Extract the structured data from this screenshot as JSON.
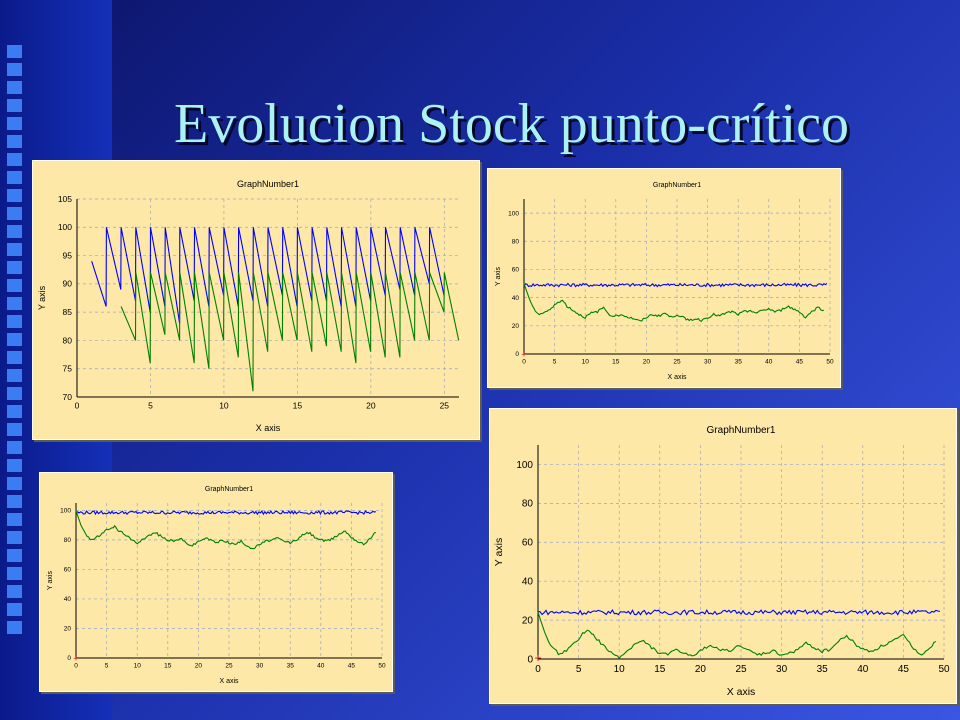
{
  "slide": {
    "title": "Evolucion Stock punto-crítico",
    "colors": {
      "background": "#1a2ea8",
      "title": "#aaf2f4",
      "plot_bg": "#fde8a8",
      "series_blue": "#0000ff",
      "series_green": "#008000"
    }
  },
  "chart_data": [
    {
      "type": "line",
      "title": "GraphNumber1",
      "xlabel": "X axis",
      "ylabel": "Y axis",
      "xlim": [
        0,
        26
      ],
      "ylim": [
        70,
        105
      ],
      "xticks": [
        "0",
        "5",
        "10",
        "15",
        "20",
        "25"
      ],
      "yticks": [
        "70",
        "75",
        "80",
        "85",
        "90",
        "95",
        "100",
        "105"
      ],
      "grid": true,
      "series": [
        {
          "color": "#0000ff",
          "sawtooth": {
            "start": 1,
            "period": 1,
            "top": 100,
            "lows": [
              86,
              89,
              87,
              85,
              86,
              83,
              87,
              86,
              88,
              86,
              87,
              86,
              88,
              86,
              87,
              87,
              86,
              86,
              87,
              88,
              89,
              88,
              90,
              88
            ],
            "first_from": 94
          }
        },
        {
          "color": "#008000",
          "sawtooth": {
            "start": 3,
            "period": 1,
            "top": 92,
            "lows": [
              80,
              76,
              81,
              80,
              76,
              75,
              80,
              77,
              71,
              78,
              80,
              80,
              78,
              79,
              78,
              76,
              78,
              77,
              77,
              80,
              80,
              85,
              80
            ],
            "first_from": 86
          }
        }
      ]
    },
    {
      "type": "line",
      "title": "GraphNumber1",
      "xlabel": "X axis",
      "ylabel": "Y axis",
      "xlim": [
        0,
        50
      ],
      "ylim": [
        0,
        110
      ],
      "xticks": [
        "0",
        "5",
        "10",
        "15",
        "20",
        "25",
        "30",
        "35",
        "40",
        "45",
        "50"
      ],
      "yticks": [
        "0",
        "20",
        "40",
        "60",
        "80",
        "100"
      ],
      "grid": true,
      "series": [
        {
          "color": "#0000ff",
          "level": 49,
          "x_end": 49.5,
          "noise": 1.2
        },
        {
          "color": "#008000",
          "start": 50,
          "points": [
            [
              0,
              50
            ],
            [
              0.8,
              40
            ],
            [
              1.6,
              32
            ],
            [
              2.5,
              28
            ],
            [
              3.5,
              30
            ],
            [
              4.5,
              32
            ],
            [
              5.5,
              37
            ],
            [
              6.3,
              38
            ],
            [
              7,
              34
            ],
            [
              8,
              31
            ],
            [
              9,
              28
            ],
            [
              10,
              26
            ],
            [
              11,
              29
            ],
            [
              12,
              30
            ],
            [
              13,
              33
            ],
            [
              14,
              28
            ],
            [
              15,
              27
            ],
            [
              16,
              28
            ],
            [
              17,
              26
            ],
            [
              18,
              25
            ],
            [
              19,
              23
            ],
            [
              20,
              26
            ],
            [
              21,
              28
            ],
            [
              22,
              27
            ],
            [
              23,
              29
            ],
            [
              24,
              26
            ],
            [
              25,
              28
            ],
            [
              26,
              26
            ],
            [
              27,
              24
            ],
            [
              28,
              25
            ],
            [
              29,
              24
            ],
            [
              30,
              26
            ],
            [
              31,
              28
            ],
            [
              32,
              27
            ],
            [
              33,
              29
            ],
            [
              34,
              30
            ],
            [
              35,
              28
            ],
            [
              36,
              30
            ],
            [
              37,
              31
            ],
            [
              38,
              29
            ],
            [
              39,
              31
            ],
            [
              40,
              32
            ],
            [
              41,
              30
            ],
            [
              42,
              31
            ],
            [
              43,
              34
            ],
            [
              44,
              32
            ],
            [
              45,
              30
            ],
            [
              46,
              26
            ],
            [
              47,
              30
            ],
            [
              48,
              33
            ],
            [
              49,
              31
            ]
          ]
        }
      ]
    },
    {
      "type": "line",
      "title": "GraphNumber1",
      "xlabel": "X axis",
      "ylabel": "Y axis",
      "xlim": [
        0,
        50
      ],
      "ylim": [
        0,
        105
      ],
      "xticks": [
        "0",
        "5",
        "10",
        "15",
        "20",
        "25",
        "30",
        "35",
        "40",
        "45",
        "50"
      ],
      "yticks": [
        "0",
        "20",
        "40",
        "60",
        "80",
        "100"
      ],
      "grid": true,
      "series": [
        {
          "color": "#0000ff",
          "level": 98.5,
          "x_end": 49,
          "noise": 1.1
        },
        {
          "color": "#008000",
          "points": [
            [
              0,
              100
            ],
            [
              0.8,
              90
            ],
            [
              1.6,
              84
            ],
            [
              2.5,
              80
            ],
            [
              3.5,
              82
            ],
            [
              4.5,
              85
            ],
            [
              5.5,
              88
            ],
            [
              6.3,
              89
            ],
            [
              7,
              86
            ],
            [
              8,
              84
            ],
            [
              9,
              80
            ],
            [
              10,
              78
            ],
            [
              11,
              81
            ],
            [
              12,
              83
            ],
            [
              13,
              85
            ],
            [
              14,
              82
            ],
            [
              15,
              80
            ],
            [
              16,
              79
            ],
            [
              17,
              81
            ],
            [
              18,
              78
            ],
            [
              19,
              76
            ],
            [
              20,
              79
            ],
            [
              21,
              81
            ],
            [
              22,
              80
            ],
            [
              23,
              78
            ],
            [
              24,
              80
            ],
            [
              25,
              78
            ],
            [
              26,
              77
            ],
            [
              27,
              79
            ],
            [
              28,
              76
            ],
            [
              29,
              74
            ],
            [
              30,
              77
            ],
            [
              31,
              79
            ],
            [
              32,
              80
            ],
            [
              33,
              81
            ],
            [
              34,
              79
            ],
            [
              35,
              78
            ],
            [
              36,
              80
            ],
            [
              37,
              83
            ],
            [
              38,
              85
            ],
            [
              39,
              82
            ],
            [
              40,
              80
            ],
            [
              41,
              79
            ],
            [
              42,
              81
            ],
            [
              43,
              84
            ],
            [
              44,
              86
            ],
            [
              45,
              82
            ],
            [
              46,
              79
            ],
            [
              47,
              77
            ],
            [
              48,
              81
            ],
            [
              49,
              85
            ]
          ]
        }
      ]
    },
    {
      "type": "line",
      "title": "GraphNumber1",
      "xlabel": "X axis",
      "ylabel": "Y axis",
      "xlim": [
        0,
        50
      ],
      "ylim": [
        0,
        110
      ],
      "xticks": [
        "0",
        "5",
        "10",
        "15",
        "20",
        "25",
        "30",
        "35",
        "40",
        "45",
        "50"
      ],
      "yticks": [
        "0",
        "20",
        "40",
        "60",
        "80",
        "100"
      ],
      "grid": true,
      "series": [
        {
          "color": "#0000ff",
          "level": 24,
          "x_end": 49.5,
          "noise": 1.2
        },
        {
          "color": "#008000",
          "points": [
            [
              0,
              24
            ],
            [
              0.8,
              14
            ],
            [
              1.6,
              6
            ],
            [
              2.5,
              3
            ],
            [
              3.5,
              4
            ],
            [
              4.5,
              8
            ],
            [
              5.5,
              13
            ],
            [
              6.3,
              15
            ],
            [
              7,
              11
            ],
            [
              8,
              7
            ],
            [
              9,
              3
            ],
            [
              10,
              1
            ],
            [
              11,
              4
            ],
            [
              12,
              8
            ],
            [
              13,
              9
            ],
            [
              14,
              6
            ],
            [
              15,
              3
            ],
            [
              16,
              2
            ],
            [
              17,
              5
            ],
            [
              18,
              3
            ],
            [
              19,
              1
            ],
            [
              20,
              4
            ],
            [
              21,
              7
            ],
            [
              22,
              6
            ],
            [
              23,
              4
            ],
            [
              24,
              5
            ],
            [
              25,
              7
            ],
            [
              26,
              4
            ],
            [
              27,
              2
            ],
            [
              28,
              3
            ],
            [
              29,
              4
            ],
            [
              30,
              2
            ],
            [
              31,
              3
            ],
            [
              32,
              5
            ],
            [
              33,
              8
            ],
            [
              34,
              6
            ],
            [
              35,
              4
            ],
            [
              36,
              5
            ],
            [
              37,
              9
            ],
            [
              38,
              12
            ],
            [
              39,
              8
            ],
            [
              40,
              5
            ],
            [
              41,
              4
            ],
            [
              42,
              6
            ],
            [
              43,
              8
            ],
            [
              44,
              10
            ],
            [
              45,
              12
            ],
            [
              46,
              7
            ],
            [
              47,
              2
            ],
            [
              48,
              5
            ],
            [
              49,
              9
            ]
          ]
        }
      ]
    }
  ]
}
